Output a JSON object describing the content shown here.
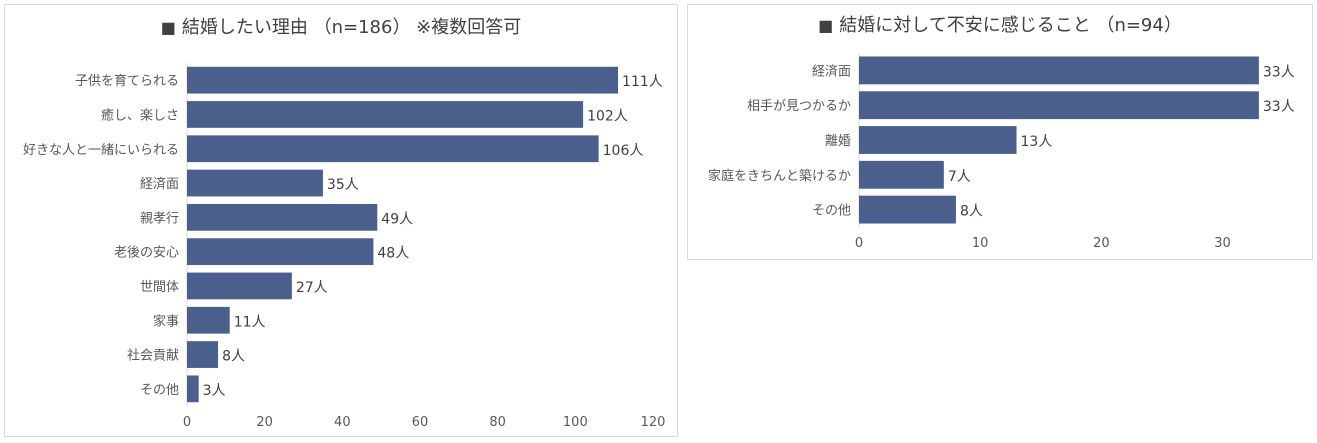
{
  "chart_data": [
    {
      "type": "bar",
      "orientation": "horizontal",
      "title_symbol": "■",
      "title": "結婚したい理由 （n=186） ※複数回答可",
      "categories": [
        "子供を育てられる",
        "癒し、楽しさ",
        "好きな人と一緒にいられる",
        "経済面",
        "親孝行",
        "老後の安心",
        "世間体",
        "家事",
        "社会貢献",
        "その他"
      ],
      "values": [
        111,
        102,
        106,
        35,
        49,
        48,
        27,
        11,
        8,
        3
      ],
      "value_labels": [
        "111人",
        "102人",
        "106人",
        "35人",
        "49人",
        "48人",
        "27人",
        "11人",
        "8人",
        "3人"
      ],
      "xlim": [
        0,
        120
      ],
      "x_ticks": [
        "0",
        "20",
        "40",
        "60",
        "80",
        "100",
        "120"
      ],
      "xlabel": "",
      "ylabel": "",
      "grid": false,
      "legend": "none",
      "bar_color": "#4a5f8c"
    },
    {
      "type": "bar",
      "orientation": "horizontal",
      "title_symbol": "■",
      "title": "結婚に対して不安に感じること （n=94）",
      "categories": [
        "経済面",
        "相手が見つかるか",
        "離婚",
        "家庭をきちんと築けるか",
        "その他"
      ],
      "values": [
        33,
        33,
        13,
        7,
        8
      ],
      "value_labels": [
        "33人",
        "33人",
        "13人",
        "7人",
        "8人"
      ],
      "xlim": [
        0,
        34
      ],
      "x_ticks": [
        "0",
        "10",
        "20",
        "30"
      ],
      "xlabel": "",
      "ylabel": "",
      "grid": false,
      "legend": "none",
      "bar_color": "#4a5f8c"
    }
  ]
}
